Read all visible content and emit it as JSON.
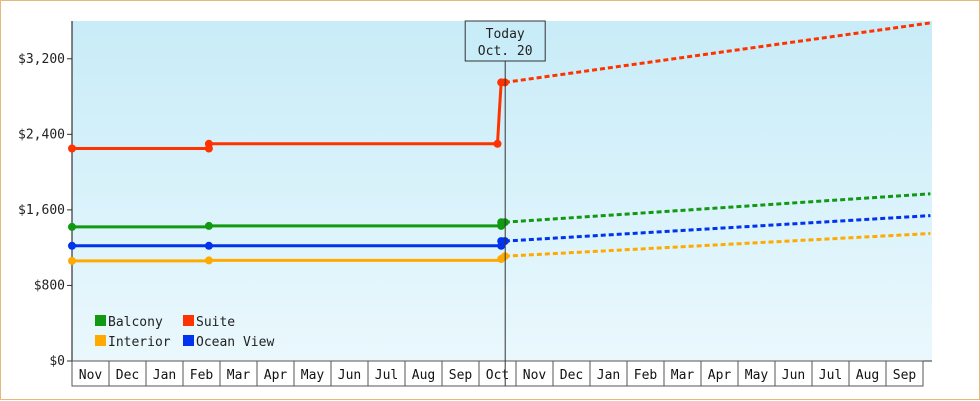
{
  "chart_data": {
    "type": "line",
    "title": "",
    "xlabel": "",
    "ylabel": "",
    "ylim": [
      0,
      3600
    ],
    "y_ticks": [
      0,
      800,
      1600,
      2400,
      3200
    ],
    "y_tick_labels": [
      "$0",
      "$800",
      "$1,600",
      "$2,400",
      "$3,200"
    ],
    "x_months": [
      "Nov",
      "Dec",
      "Jan",
      "Feb",
      "Mar",
      "Apr",
      "May",
      "Jun",
      "Jul",
      "Aug",
      "Sep",
      "Oct",
      "Nov",
      "Dec",
      "Jan",
      "Feb",
      "Mar",
      "Apr",
      "May",
      "Jun",
      "Jul",
      "Aug",
      "Sep"
    ],
    "today": {
      "line1": "Today",
      "line2": "Oct. 20",
      "x_month_index": 11.6
    },
    "legend_position": "bottom-left",
    "grid": false,
    "series": [
      {
        "name": "Balcony",
        "color": "#119911",
        "historical": [
          [
            0,
            1420
          ],
          [
            3.7,
            1420
          ],
          [
            3.7,
            1430
          ],
          [
            11.6,
            1430
          ],
          [
            11.6,
            1470
          ],
          [
            11.7,
            1470
          ]
        ],
        "markers": [
          [
            0,
            1420
          ],
          [
            3.7,
            1430
          ],
          [
            11.6,
            1430
          ],
          [
            11.6,
            1470
          ],
          [
            11.7,
            1470
          ]
        ],
        "forecast": [
          [
            11.7,
            1470
          ],
          [
            23.2,
            1770
          ]
        ]
      },
      {
        "name": "Suite",
        "color": "#ff3300",
        "historical": [
          [
            0,
            2250
          ],
          [
            3.7,
            2250
          ],
          [
            3.7,
            2300
          ],
          [
            11.5,
            2300
          ],
          [
            11.55,
            2650
          ],
          [
            11.6,
            2950
          ],
          [
            11.7,
            2950
          ]
        ],
        "markers": [
          [
            0,
            2250
          ],
          [
            3.7,
            2250
          ],
          [
            3.7,
            2300
          ],
          [
            11.5,
            2300
          ],
          [
            11.6,
            2950
          ],
          [
            11.7,
            2950
          ]
        ],
        "forecast": [
          [
            11.7,
            2950
          ],
          [
            23.2,
            3580
          ]
        ]
      },
      {
        "name": "Interior",
        "color": "#ffaa00",
        "historical": [
          [
            0,
            1060
          ],
          [
            3.7,
            1060
          ],
          [
            3.7,
            1065
          ],
          [
            11.6,
            1065
          ],
          [
            11.6,
            1110
          ],
          [
            11.7,
            1110
          ]
        ],
        "markers": [
          [
            0,
            1060
          ],
          [
            3.7,
            1065
          ],
          [
            11.6,
            1080
          ],
          [
            11.7,
            1110
          ]
        ],
        "forecast": [
          [
            11.7,
            1110
          ],
          [
            23.2,
            1350
          ]
        ]
      },
      {
        "name": "Ocean View",
        "color": "#0033ee",
        "historical": [
          [
            0,
            1220
          ],
          [
            3.7,
            1220
          ],
          [
            11.6,
            1220
          ],
          [
            11.6,
            1270
          ],
          [
            11.7,
            1270
          ]
        ],
        "markers": [
          [
            0,
            1220
          ],
          [
            3.7,
            1220
          ],
          [
            11.6,
            1220
          ],
          [
            11.6,
            1270
          ],
          [
            11.7,
            1270
          ]
        ],
        "forecast": [
          [
            11.7,
            1270
          ],
          [
            23.2,
            1540
          ]
        ]
      }
    ]
  }
}
